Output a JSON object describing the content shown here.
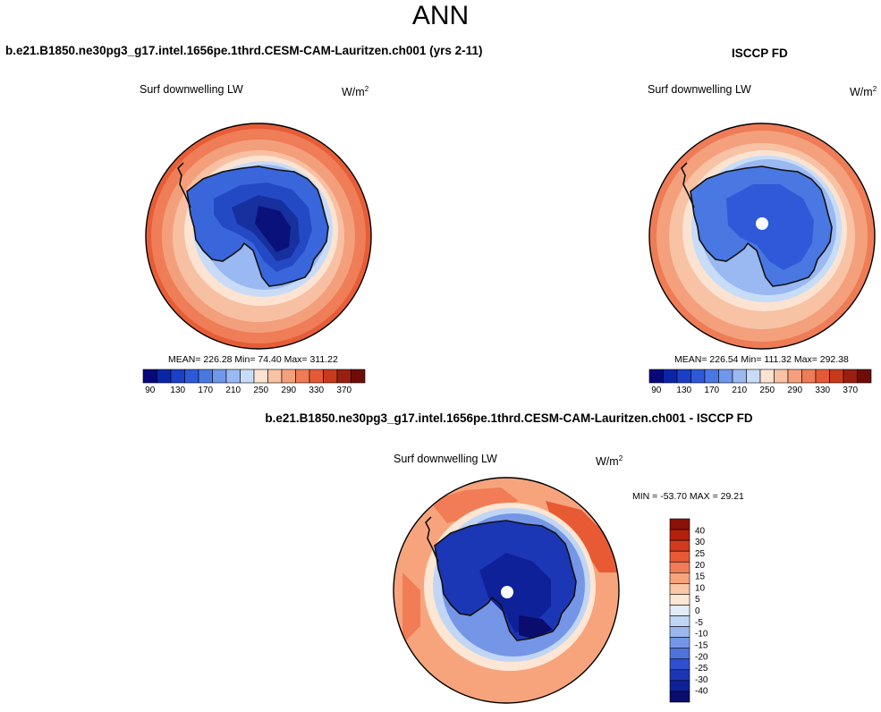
{
  "season": "ANN",
  "panels": [
    {
      "id": "model",
      "title": "b.e21.B1850.ne30pg3_g17.intel.1656pe.1thrd.CESM-CAM-Lauritzen.ch001 (yrs 2-11)",
      "variable": "Surf downwelling LW",
      "units_base": "W/m",
      "units_exp": "2",
      "stats": "MEAN= 226.28  Min=  74.40  Max= 311.22"
    },
    {
      "id": "obs",
      "title": "ISCCP FD",
      "variable": "Surf downwelling LW",
      "units_base": "W/m",
      "units_exp": "2",
      "stats": "MEAN= 226.54  Min= 111.32  Max= 292.38"
    },
    {
      "id": "diff",
      "title": "b.e21.B1850.ne30pg3_g17.intel.1656pe.1thrd.CESM-CAM-Lauritzen.ch001 - ISCCP FD",
      "variable": "Surf downwelling LW",
      "units_base": "W/m",
      "units_exp": "2",
      "stats": "MIN = -53.70 MAX =  29.21"
    }
  ],
  "colorbar_main": {
    "orientation": "horizontal",
    "colors": [
      "#08087a",
      "#0b25a8",
      "#1a40c8",
      "#2e5ad9",
      "#4a78e2",
      "#6f97ea",
      "#9ab8f1",
      "#c7dcf7",
      "#fbe3d2",
      "#f8c2a4",
      "#f4a07c",
      "#ee7c56",
      "#e55a34",
      "#c93a1c",
      "#9a1f10",
      "#6e0d08"
    ],
    "tick_labels": [
      "90",
      "130",
      "170",
      "210",
      "250",
      "290",
      "330",
      "370"
    ]
  },
  "colorbar_diff": {
    "orientation": "vertical",
    "colors_top_to_bottom": [
      "#8a1208",
      "#b3200e",
      "#d13a1f",
      "#e85a34",
      "#f27c56",
      "#f7a47d",
      "#fac6a6",
      "#fde6d4",
      "#e3ecf9",
      "#c1d6f4",
      "#9bb8ee",
      "#7596e6",
      "#4f72dc",
      "#2f4fce",
      "#1c37b6",
      "#0f2199",
      "#0a0c6e"
    ],
    "tick_labels": [
      "40",
      "30",
      "25",
      "20",
      "15",
      "10",
      "5",
      "0",
      "-5",
      "-10",
      "-15",
      "-20",
      "-25",
      "-30",
      "-40"
    ]
  }
}
